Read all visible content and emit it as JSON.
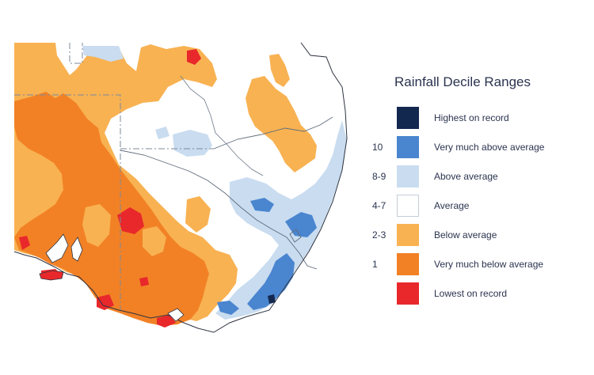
{
  "legend": {
    "title": "Rainfall Decile Ranges",
    "items": [
      {
        "range": "",
        "label": "Highest on record",
        "color": "#13284f"
      },
      {
        "range": "10",
        "label": "Very much above average",
        "color": "#4a85cf"
      },
      {
        "range": "8-9",
        "label": "Above average",
        "color": "#c9dcf0"
      },
      {
        "range": "4-7",
        "label": "Average",
        "color": "#ffffff"
      },
      {
        "range": "2-3",
        "label": "Below average",
        "color": "#f8b252"
      },
      {
        "range": "1",
        "label": "Very much below average",
        "color": "#f28125"
      },
      {
        "range": "",
        "label": "Lowest on record",
        "color": "#e8282b"
      }
    ]
  },
  "map": {
    "region": "South-eastern Australia",
    "colors": {
      "highest": "#13284f",
      "very_much_above": "#4a85cf",
      "above": "#c9dcf0",
      "average": "#ffffff",
      "below": "#f8b252",
      "very_much_below": "#f28125",
      "lowest": "#e8282b",
      "border": "#7d8a99",
      "coast": "#2e3340"
    }
  }
}
